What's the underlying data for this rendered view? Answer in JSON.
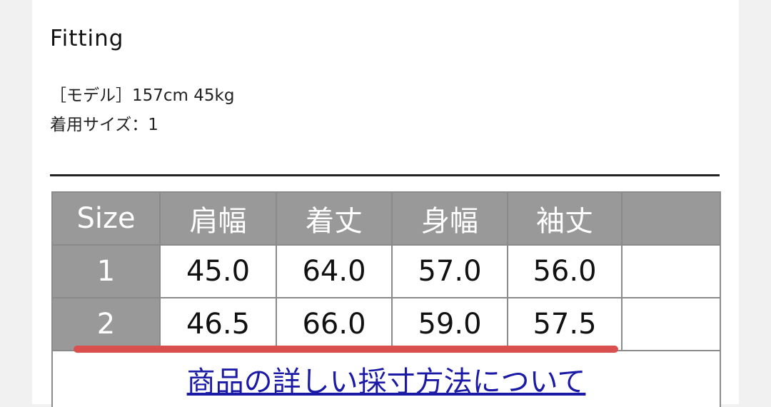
{
  "section_title": "Fitting",
  "model_info": "［モデル］157cm 45kg",
  "worn_size": "着用サイズ：1",
  "table": {
    "headers": [
      "Size",
      "肩幅",
      "着丈",
      "身幅",
      "袖丈",
      ""
    ],
    "rows": [
      {
        "size": "1",
        "values": [
          "45.0",
          "64.0",
          "57.0",
          "56.0",
          ""
        ]
      },
      {
        "size": "2",
        "values": [
          "46.5",
          "66.0",
          "59.0",
          "57.5",
          ""
        ]
      }
    ]
  },
  "measure_link": "商品の詳しい採寸方法について",
  "highlight_color": "#d9504f"
}
